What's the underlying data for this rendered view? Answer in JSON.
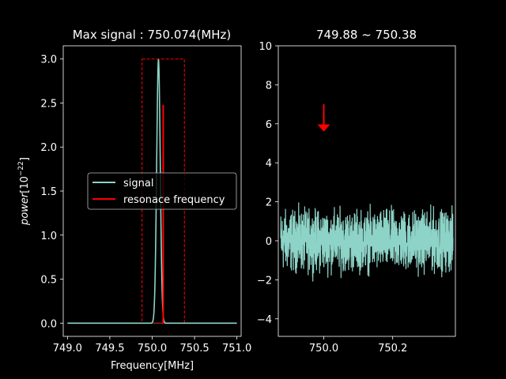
{
  "chart_data": [
    {
      "type": "line",
      "title": "Max signal : 750.074(MHz)",
      "xlabel": "Frequency[MHz]",
      "ylabel_main": "power",
      "ylabel_unit_base": "[10",
      "ylabel_unit_exp": "−22",
      "ylabel_unit_close": "]",
      "xlim": [
        748.95,
        751.05
      ],
      "ylim": [
        -0.15,
        3.15
      ],
      "xticks": [
        749.0,
        749.5,
        750.0,
        750.5,
        751.0
      ],
      "xtick_labels": [
        "749.0",
        "749.5",
        "750.0",
        "750.5",
        "751.0"
      ],
      "yticks": [
        0.0,
        0.5,
        1.0,
        1.5,
        2.0,
        2.5,
        3.0
      ],
      "ytick_labels": [
        "0.0",
        "0.5",
        "1.0",
        "1.5",
        "2.0",
        "2.5",
        "3.0"
      ],
      "series": [
        {
          "name": "signal",
          "color": "#8dd3c7",
          "peak_x": 750.074,
          "peak_y": 3.0,
          "width": 0.03,
          "x_start": 749.0,
          "x_end": 751.0
        },
        {
          "name": "resonace frequency",
          "color": "#ff0000",
          "x": [
            750.13,
            750.13
          ],
          "y": [
            0.0,
            2.48
          ]
        }
      ],
      "baseline": {
        "y": 0.0,
        "color": "#666666"
      },
      "selection_box": {
        "x": [
          749.88,
          750.38
        ],
        "y": [
          0.0,
          3.0
        ],
        "color": "#ff0000",
        "style": "dashed"
      },
      "legend": {
        "placement": "center-right"
      }
    },
    {
      "type": "line",
      "title": "749.88 ~ 750.38",
      "xlim": [
        749.868,
        750.382
      ],
      "ylim": [
        -4.9,
        10.0
      ],
      "xticks": [
        750.0,
        750.2
      ],
      "xtick_labels": [
        "750.0",
        "750.2"
      ],
      "yticks": [
        -4,
        -2,
        0,
        2,
        4,
        6,
        8,
        10
      ],
      "ytick_labels": [
        "−4",
        "−2",
        "0",
        "2",
        "4",
        "6",
        "8",
        "10"
      ],
      "series": [
        {
          "color": "#8dd3c7",
          "x_start": 749.875,
          "x_end": 750.375,
          "noise_center": 0.0,
          "noise_amplitude": 2.2
        }
      ],
      "annotation": {
        "type": "arrow",
        "color": "#ff0000",
        "x": 750.0,
        "y_tail": 7.0,
        "y_head": 5.6
      }
    }
  ]
}
